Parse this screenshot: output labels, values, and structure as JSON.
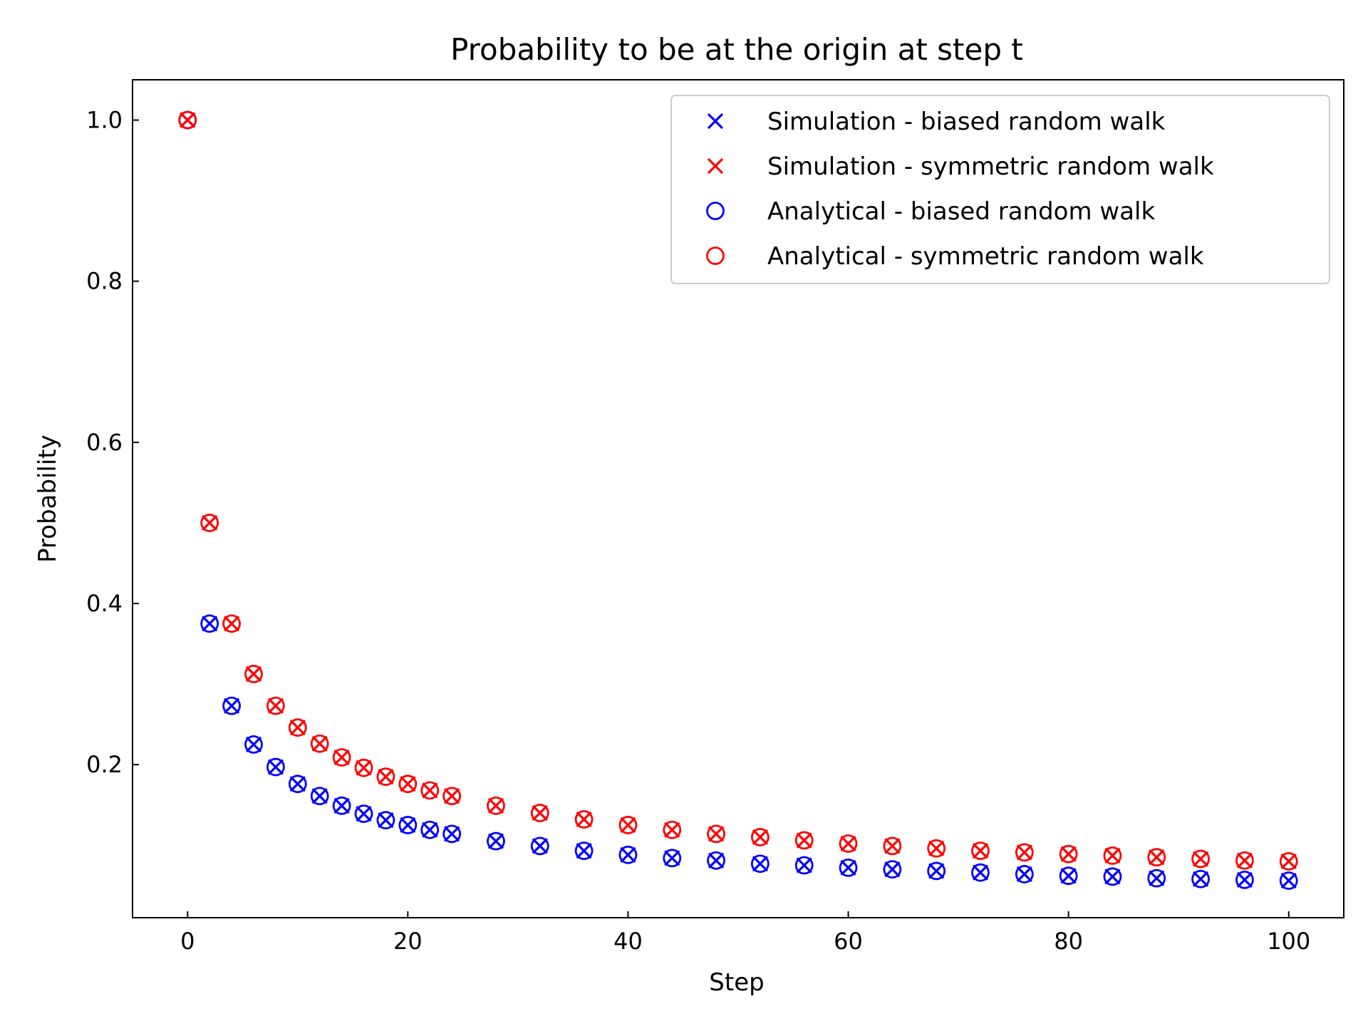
{
  "chart_data": {
    "type": "scatter",
    "title": "Probability to be at the origin at step t",
    "xlabel": "Step",
    "ylabel": "Probability",
    "xlim": [
      -5,
      105
    ],
    "ylim": [
      0.01,
      1.05
    ],
    "xticks": [
      0,
      20,
      40,
      60,
      80,
      100
    ],
    "xtick_labels": [
      "0",
      "20",
      "40",
      "60",
      "80",
      "100"
    ],
    "yticks": [
      0.2,
      0.4,
      0.6,
      0.8,
      1.0
    ],
    "ytick_labels": [
      "0.2",
      "0.4",
      "0.6",
      "0.8",
      "1.0"
    ],
    "grid": false,
    "legend_position": "top-right",
    "x": [
      0,
      2,
      4,
      6,
      8,
      10,
      12,
      14,
      16,
      18,
      20,
      22,
      24,
      28,
      32,
      36,
      40,
      44,
      48,
      52,
      56,
      60,
      64,
      68,
      72,
      76,
      80,
      84,
      88,
      92,
      96,
      100
    ],
    "series": [
      {
        "name": "Simulation - biased random walk",
        "marker": "x",
        "color": "#0000ff",
        "values": [
          1.0,
          0.375,
          0.273,
          0.225,
          0.197,
          0.176,
          0.161,
          0.149,
          0.139,
          0.131,
          0.125,
          0.119,
          0.114,
          0.105,
          0.099,
          0.093,
          0.088,
          0.084,
          0.081,
          0.077,
          0.075,
          0.072,
          0.07,
          0.068,
          0.066,
          0.064,
          0.062,
          0.061,
          0.059,
          0.058,
          0.057,
          0.056
        ]
      },
      {
        "name": "Simulation - symmetric random walk",
        "marker": "x",
        "color": "#ff0000",
        "values": [
          1.0,
          0.5,
          0.375,
          0.3125,
          0.273,
          0.246,
          0.226,
          0.209,
          0.196,
          0.185,
          0.176,
          0.168,
          0.161,
          0.149,
          0.14,
          0.132,
          0.125,
          0.119,
          0.114,
          0.11,
          0.106,
          0.102,
          0.099,
          0.096,
          0.093,
          0.091,
          0.089,
          0.087,
          0.085,
          0.083,
          0.081,
          0.08
        ]
      },
      {
        "name": "Analytical - biased random walk",
        "marker": "o",
        "color": "#0000ff",
        "values": [
          1.0,
          0.375,
          0.273,
          0.225,
          0.197,
          0.176,
          0.161,
          0.149,
          0.139,
          0.131,
          0.125,
          0.119,
          0.114,
          0.105,
          0.099,
          0.093,
          0.088,
          0.084,
          0.081,
          0.077,
          0.075,
          0.072,
          0.07,
          0.068,
          0.066,
          0.064,
          0.062,
          0.061,
          0.059,
          0.058,
          0.057,
          0.056
        ]
      },
      {
        "name": "Analytical - symmetric random walk",
        "marker": "o",
        "color": "#ff0000",
        "values": [
          1.0,
          0.5,
          0.375,
          0.3125,
          0.273,
          0.246,
          0.226,
          0.209,
          0.196,
          0.185,
          0.176,
          0.168,
          0.161,
          0.149,
          0.14,
          0.132,
          0.125,
          0.119,
          0.114,
          0.11,
          0.106,
          0.102,
          0.099,
          0.096,
          0.093,
          0.091,
          0.089,
          0.087,
          0.085,
          0.083,
          0.081,
          0.08
        ]
      }
    ]
  }
}
